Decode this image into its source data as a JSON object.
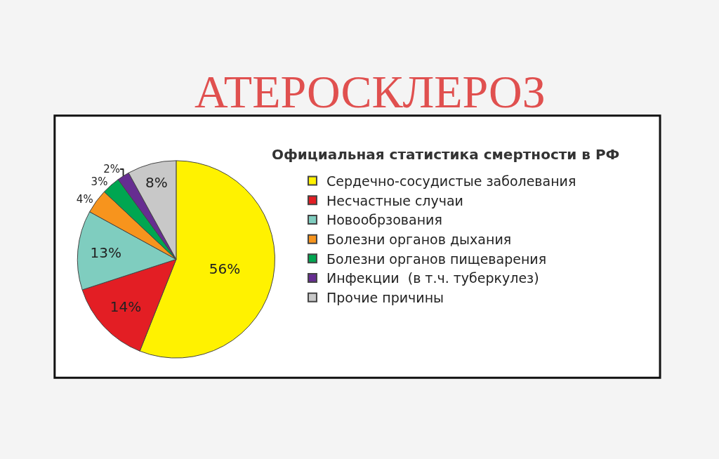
{
  "chart_data": {
    "type": "pie",
    "title": "АТЕРОСКЛЕРОЗ",
    "subtitle": "Официальная статистика смертности в РФ",
    "categories": [
      "Сердечно-сосудистые заболевания",
      "Несчастные случаи",
      "Новообрзования",
      "Болезни органов дыхания",
      "Болезни органов пищеварения",
      "Инфекции  (в т.ч. туберкулез)",
      "Прочие причины"
    ],
    "values": [
      56,
      14,
      13,
      4,
      3,
      2,
      8
    ],
    "value_labels": [
      "56%",
      "14%",
      "13%",
      "4%",
      "3%",
      "2%",
      "8%"
    ],
    "colors": [
      "#fff200",
      "#e31e24",
      "#7fcdbf",
      "#f7941d",
      "#00a651",
      "#662d91",
      "#c8c8c8"
    ],
    "legend": "right"
  }
}
